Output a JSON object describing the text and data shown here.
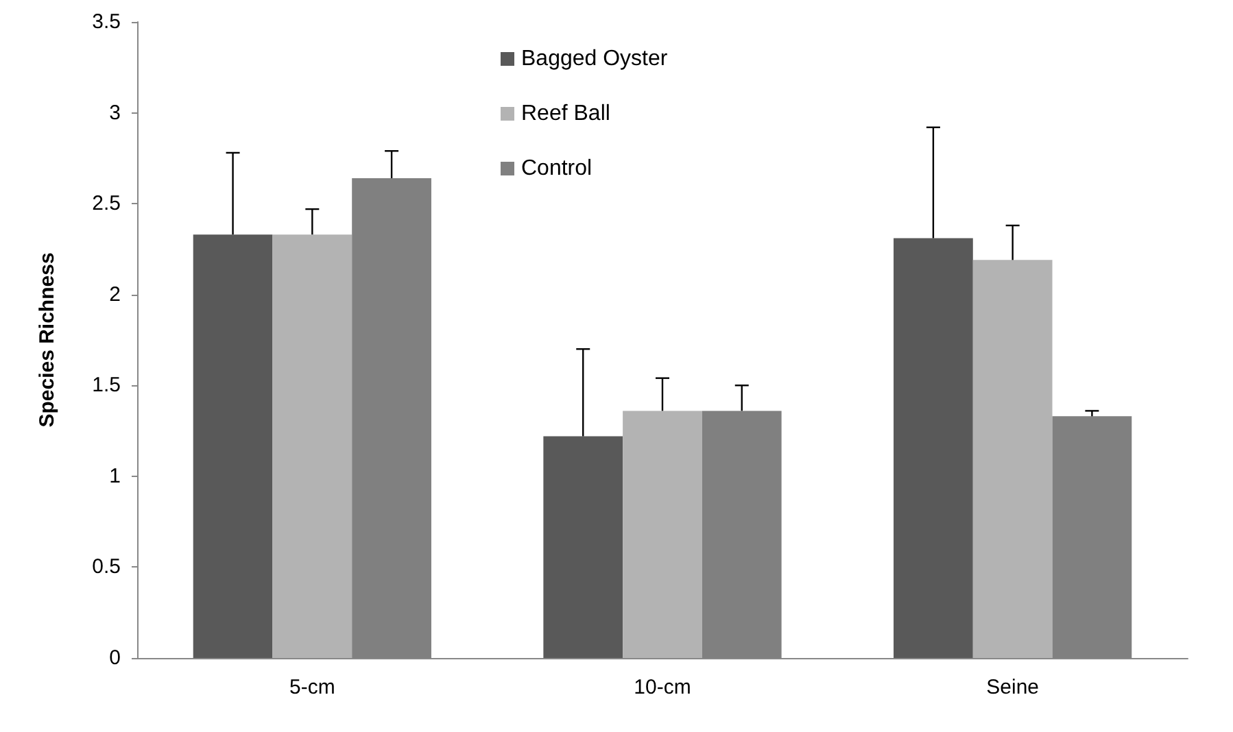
{
  "chart_data": {
    "type": "bar",
    "ylabel": "Species Richness",
    "categories": [
      "5-cm",
      "10-cm",
      "Seine"
    ],
    "series": [
      {
        "name": "Bagged Oyster",
        "color": "#595959",
        "values": [
          2.33,
          1.22,
          2.31
        ],
        "errors": [
          [
            2.33,
            2.78
          ],
          [
            1.22,
            1.7
          ],
          [
            2.31,
            2.92
          ]
        ]
      },
      {
        "name": "Reef Ball",
        "color": "#b3b3b3",
        "values": [
          2.33,
          1.36,
          2.19
        ],
        "errors": [
          [
            2.33,
            2.47
          ],
          [
            1.36,
            1.54
          ],
          [
            2.19,
            2.38
          ]
        ]
      },
      {
        "name": "Control",
        "color": "#808080",
        "values": [
          2.64,
          1.36,
          1.33
        ],
        "errors": [
          [
            2.64,
            2.79
          ],
          [
            1.36,
            1.5
          ],
          [
            1.33,
            1.36
          ]
        ]
      }
    ],
    "ylim": [
      0,
      3.5
    ],
    "yticks": [
      0,
      0.5,
      1,
      1.5,
      2,
      2.5,
      3,
      3.5
    ],
    "grid": false,
    "legend": "top"
  }
}
